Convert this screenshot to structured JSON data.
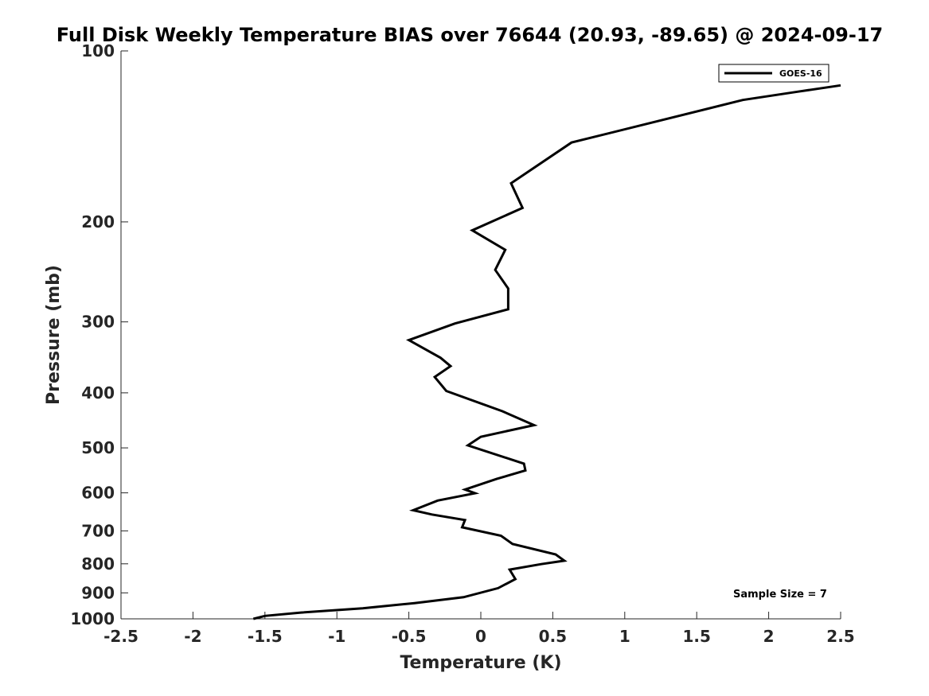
{
  "chart_data": {
    "type": "line",
    "title": "Full Disk Weekly Temperature BIAS over 76644 (20.93, -89.65) @ 2024-09-17",
    "xlabel": "Temperature (K)",
    "ylabel": "Pressure (mb)",
    "xlim": [
      -2.5,
      2.5
    ],
    "ylim": [
      100,
      1000
    ],
    "y_scale": "log",
    "y_reversed": true,
    "x_ticks": [
      "-2.5",
      "-2",
      "-1.5",
      "-1",
      "-0.5",
      "0",
      "0.5",
      "1",
      "1.5",
      "2",
      "2.5"
    ],
    "y_ticks": [
      "100",
      "200",
      "300",
      "400",
      "500",
      "600",
      "700",
      "800",
      "900",
      "1000"
    ],
    "grid": false,
    "legend_position": "top-right",
    "series": [
      {
        "name": "GOES-16",
        "color": "#000000",
        "x": [
          2.5,
          2.2,
          1.82,
          0.63,
          0.21,
          0.29,
          -0.06,
          0.17,
          0.1,
          0.19,
          0.19,
          -0.18,
          -0.5,
          -0.28,
          -0.21,
          -0.32,
          -0.24,
          0.15,
          0.37,
          0.0,
          -0.09,
          0.3,
          0.31,
          0.11,
          -0.11,
          -0.04,
          -0.3,
          -0.47,
          -0.34,
          -0.11,
          -0.13,
          0.14,
          0.22,
          0.52,
          0.58,
          0.42,
          0.2,
          0.24,
          0.12,
          -0.12,
          -0.46,
          -0.82,
          -1.25,
          -1.5,
          -1.58
        ],
        "y": [
          115,
          118,
          122,
          145,
          171,
          189,
          207,
          224,
          243,
          262,
          285,
          302,
          323,
          347,
          359,
          375,
          397,
          431,
          456,
          478,
          495,
          533,
          548,
          567,
          592,
          601,
          619,
          644,
          655,
          670,
          690,
          714,
          738,
          770,
          790,
          801,
          819,
          851,
          883,
          916,
          938,
          958,
          975,
          988,
          1000
        ]
      }
    ],
    "annotations": [
      "Sample Size = 7"
    ]
  }
}
